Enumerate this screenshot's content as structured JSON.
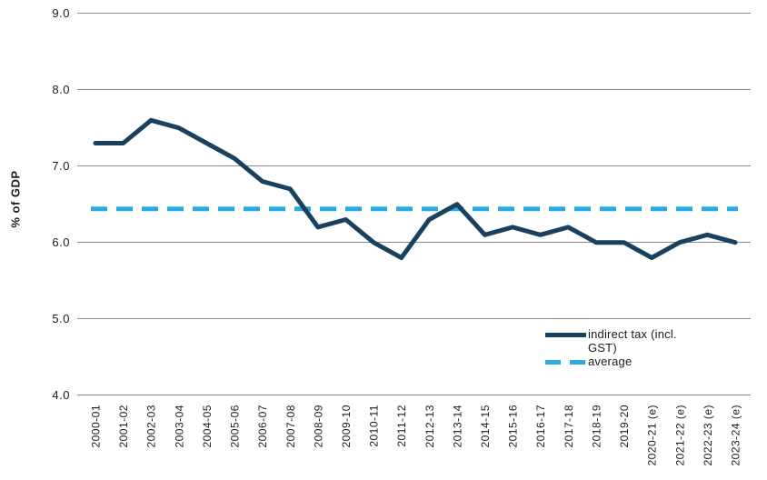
{
  "chart_data": {
    "type": "line",
    "title": "",
    "xlabel": "",
    "ylabel": "% of GDP",
    "ylim": [
      4.0,
      9.0
    ],
    "yticks": [
      "9.0",
      "8.0",
      "7.0",
      "6.0",
      "5.0",
      "4.0"
    ],
    "grid": true,
    "legend_position": "inside-bottom-right",
    "categories": [
      "2000-01",
      "2001-02",
      "2002-03",
      "2003-04",
      "2004-05",
      "2005-06",
      "2006-07",
      "2007-08",
      "2008-09",
      "2009-10",
      "2010-11",
      "2011-12",
      "2012-13",
      "2013-14",
      "2014-15",
      "2015-16",
      "2016-17",
      "2017-18",
      "2018-19",
      "2019-20",
      "2020-21 (e)",
      "2021-22 (e)",
      "2022-23 (e)",
      "2023-24 (e)"
    ],
    "series": [
      {
        "name": "indirect tax (incl. GST)",
        "type": "line",
        "style": "solid",
        "color": "#17415f",
        "values": [
          7.3,
          7.3,
          7.6,
          7.5,
          7.3,
          7.1,
          6.8,
          6.7,
          6.2,
          6.3,
          6.0,
          5.8,
          6.3,
          6.5,
          6.1,
          6.2,
          6.1,
          6.2,
          6.0,
          6.0,
          5.8,
          6.0,
          6.1,
          6.0
        ]
      },
      {
        "name": "average",
        "type": "constant-line",
        "style": "dashed",
        "color": "#29abe2",
        "value": 6.44
      }
    ],
    "colors": {
      "gridline": "#8a8a8a",
      "text": "#1a1a1a",
      "background": "#ffffff"
    }
  }
}
